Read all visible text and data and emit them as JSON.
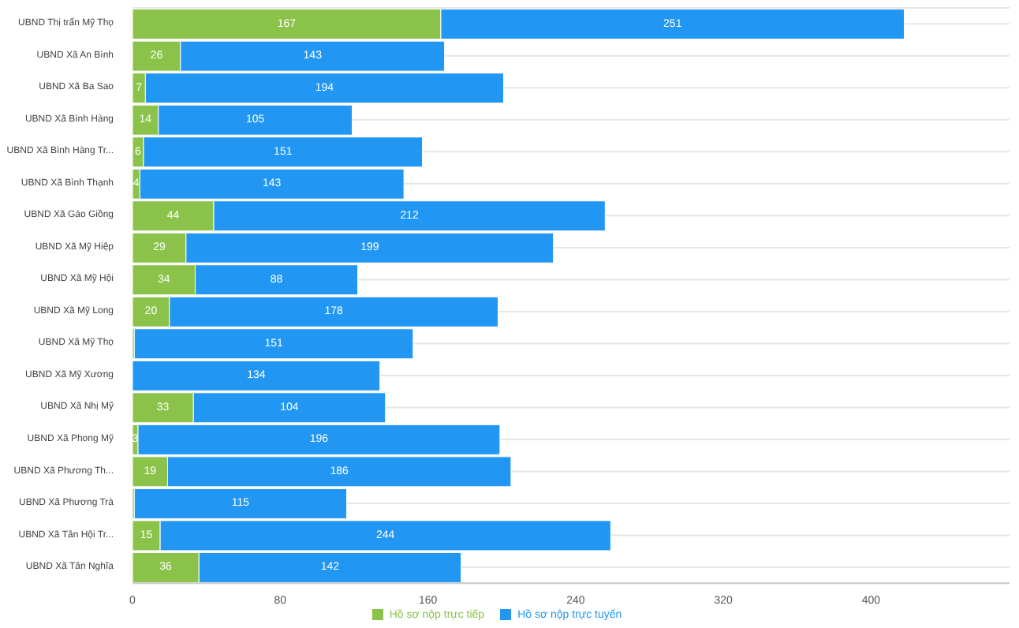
{
  "chart_data": {
    "type": "bar",
    "orientation": "horizontal",
    "stacked": true,
    "categories": [
      "UBND Thị trấn Mỹ Thọ",
      "UBND Xã An Bình",
      "UBND Xã Ba Sao",
      "UBND Xã Bình Hàng",
      "UBND Xã Bình Hàng Tr...",
      "UBND Xã Bình Thạnh",
      "UBND Xã Gáo Giồng",
      "UBND Xã Mỹ Hiệp",
      "UBND Xã Mỹ Hội",
      "UBND Xã Mỹ Long",
      "UBND Xã Mỹ Thọ",
      "UBND Xã Mỹ Xương",
      "UBND Xã Nhị Mỹ",
      "UBND Xã Phong Mỹ",
      "UBND Xã Phương Th...",
      "UBND Xã Phương Trà",
      "UBND Xã Tân Hội Tr...",
      "UBND Xã Tân Nghĩa"
    ],
    "series": [
      {
        "name": "Hồ sơ nộp trực tiếp",
        "color": "#8bc34a",
        "values": [
          167,
          26,
          7,
          14,
          6,
          4,
          44,
          29,
          34,
          20,
          1,
          0,
          33,
          3,
          19,
          1,
          15,
          36
        ],
        "value_labels": [
          "167",
          "26",
          "7",
          "14",
          "6",
          "4",
          "44",
          "29",
          "34",
          "20",
          null,
          null,
          "33",
          "3",
          "19",
          null,
          "15",
          "36"
        ]
      },
      {
        "name": "Hồ sơ nộp trực tuyến",
        "color": "#2196f3",
        "values": [
          251,
          143,
          194,
          105,
          151,
          143,
          212,
          199,
          88,
          178,
          151,
          134,
          104,
          196,
          186,
          115,
          244,
          142
        ],
        "value_labels": [
          "251",
          "143",
          "194",
          "105",
          "151",
          "143",
          "212",
          "199",
          "88",
          "178",
          "151",
          "134",
          "104",
          "196",
          "186",
          "115",
          "244",
          "142"
        ]
      }
    ],
    "xlim": [
      0,
      475
    ],
    "xticks": [
      0,
      80,
      160,
      240,
      320,
      400
    ],
    "grid": "y",
    "legend": "bottom"
  }
}
